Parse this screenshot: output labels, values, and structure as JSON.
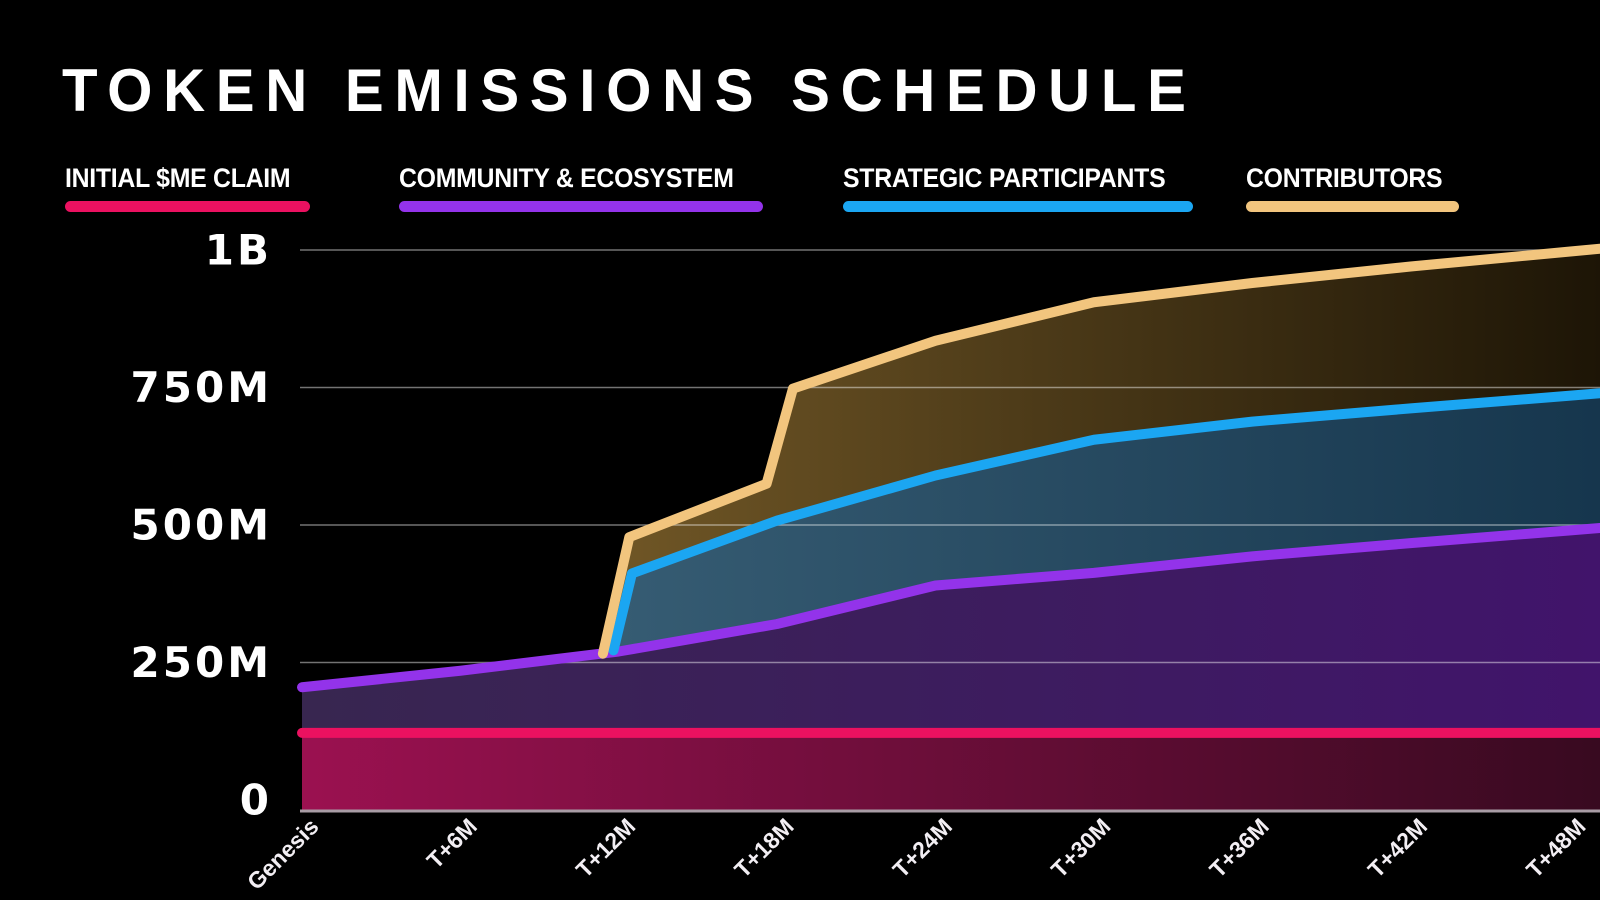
{
  "title": "TOKEN EMISSIONS SCHEDULE",
  "colors": {
    "background": "#000000",
    "title_text": "#FFFFFF",
    "axis_text": "#F2EEF3",
    "gridline": "#FFFFFF",
    "baseline": "#A89CA5"
  },
  "legend": {
    "items": [
      {
        "id": "initial-me-claim",
        "label": "INITIAL $ME CLAIM",
        "color": "#EB1160"
      },
      {
        "id": "community-ecosystem",
        "label": "COMMUNITY & ECOSYSTEM",
        "color": "#9333EA"
      },
      {
        "id": "strategic-participants",
        "label": "STRATEGIC PARTICIPANTS",
        "color": "#1BA6F2"
      },
      {
        "id": "contributors",
        "label": "CONTRIBUTORS",
        "color": "#F2C57E"
      }
    ]
  },
  "chart_data": {
    "type": "area",
    "stacked": true,
    "title": "Token Emissions Schedule",
    "note": "Point values are cumulative stack tops in millions of tokens, read from the chart",
    "legend_position": "top",
    "grid": "horizontal",
    "x_axis": {
      "unit": "months after Genesis",
      "tick_labels": [
        "Genesis",
        "T+6M",
        "T+12M",
        "T+18M",
        "T+24M",
        "T+30M",
        "T+36M",
        "T+42M",
        "T+48M"
      ],
      "tick_months": [
        0,
        6,
        12,
        18,
        24,
        30,
        36,
        42,
        48
      ]
    },
    "y_axis": {
      "tick_labels": [
        "1B",
        "750M",
        "500M",
        "250M",
        "0"
      ],
      "tick_values": [
        1000,
        750,
        500,
        250,
        0
      ],
      "ylim": [
        0,
        1000
      ]
    },
    "series": [
      {
        "id": "initial-me-claim",
        "name": "Initial $ME Claim",
        "line_color": "#EB1160",
        "fill_left": "#9B1150",
        "fill_right": "#380A20",
        "points": [
          [
            0,
            122
          ],
          [
            48,
            122
          ]
        ]
      },
      {
        "id": "community-ecosystem",
        "name": "Community & Ecosystem",
        "line_color": "#9333EA",
        "fill_left": "#382650",
        "fill_right": "#41146B",
        "points": [
          [
            0,
            205
          ],
          [
            6,
            235
          ],
          [
            12,
            270
          ],
          [
            18,
            320
          ],
          [
            24,
            390
          ],
          [
            30,
            413
          ],
          [
            36,
            443
          ],
          [
            42,
            467
          ],
          [
            48,
            490
          ]
        ]
      },
      {
        "id": "strategic-participants",
        "name": "Strategic Participants",
        "line_color": "#1BA6F2",
        "fill_left": "#40687F",
        "fill_right": "#16364D",
        "points": [
          [
            11.8,
            272
          ],
          [
            12.5,
            412
          ],
          [
            18,
            508
          ],
          [
            24,
            590
          ],
          [
            30,
            655
          ],
          [
            36,
            688
          ],
          [
            42,
            712
          ],
          [
            48,
            735
          ]
        ]
      },
      {
        "id": "contributors",
        "name": "Contributors",
        "line_color": "#F2C57E",
        "fill_left": "#8A6B30",
        "fill_right": "#1D1506",
        "points": [
          [
            11.4,
            266
          ],
          [
            12.4,
            478
          ],
          [
            17.6,
            575
          ],
          [
            18.6,
            748
          ],
          [
            24,
            835
          ],
          [
            30,
            905
          ],
          [
            36,
            940
          ],
          [
            42,
            970
          ],
          [
            48,
            997
          ]
        ]
      }
    ]
  }
}
